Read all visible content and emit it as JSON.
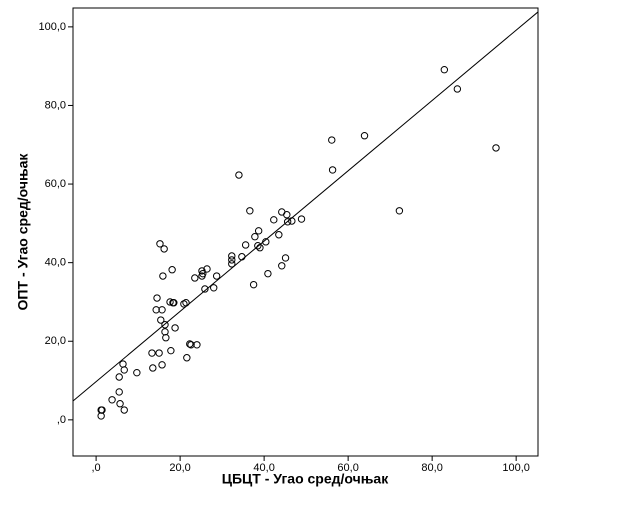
{
  "chart_data": {
    "type": "scatter",
    "x_label": "ЦБЦТ - Угао сред/очњак",
    "y_label": "ОПТ - Угао сред/очњак",
    "xlim": [
      -5.5,
      105.2
    ],
    "ylim": [
      -9.2,
      104.8
    ],
    "xticks": [
      {
        "value": 0,
        "label": ",0"
      },
      {
        "value": 20,
        "label": "20,0"
      },
      {
        "value": 40,
        "label": "40,0"
      },
      {
        "value": 60,
        "label": "60,0"
      },
      {
        "value": 80,
        "label": "80,0"
      },
      {
        "value": 100,
        "label": "100,0"
      }
    ],
    "yticks": [
      {
        "value": 0,
        "label": ",0"
      },
      {
        "value": 20,
        "label": "20,0"
      },
      {
        "value": 40,
        "label": "40,0"
      },
      {
        "value": 60,
        "label": "60,0"
      },
      {
        "value": 80,
        "label": "80,0"
      },
      {
        "value": 100,
        "label": "100,0"
      }
    ],
    "color": "#000000",
    "x": [
      1.2,
      1.4,
      1.2,
      3.8,
      5.5,
      5.7,
      5.5,
      6.7,
      6.4,
      6.7,
      9.7,
      13.3,
      13.5,
      14.5,
      14.3,
      15.0,
      15.4,
      15.7,
      15.2,
      16.2,
      15.9,
      15.7,
      16.4,
      16.4,
      16.6,
      17.6,
      18.1,
      18.3,
      18.5,
      17.8,
      18.8,
      20.9,
      21.4,
      21.6,
      22.3,
      22.6,
      24.0,
      23.5,
      25.2,
      25.4,
      25.2,
      26.4,
      25.9,
      28.0,
      28.7,
      32.3,
      32.3,
      32.3,
      34.7,
      35.6,
      34.0,
      36.6,
      37.8,
      37.5,
      38.7,
      38.5,
      39.0,
      40.4,
      40.9,
      42.3,
      43.5,
      44.2,
      44.2,
      45.1,
      45.4,
      45.6,
      46.6,
      48.9,
      56.1,
      56.3,
      63.9,
      72.2,
      82.9,
      86.0,
      95.2
    ],
    "y": [
      2.5,
      2.5,
      1.0,
      5.1,
      7.1,
      4.1,
      10.9,
      2.5,
      14.2,
      12.7,
      12.0,
      17.0,
      13.2,
      31.0,
      28.0,
      17.0,
      25.4,
      28.0,
      44.8,
      43.5,
      36.6,
      14.0,
      24.2,
      22.4,
      20.9,
      30.0,
      38.2,
      29.8,
      29.8,
      17.6,
      23.4,
      29.5,
      29.8,
      15.8,
      19.3,
      19.1,
      19.1,
      36.1,
      37.9,
      37.2,
      36.6,
      38.4,
      33.3,
      33.6,
      36.6,
      41.7,
      40.7,
      39.7,
      41.5,
      44.5,
      62.3,
      53.2,
      46.6,
      34.4,
      48.1,
      44.3,
      43.8,
      45.3,
      37.2,
      50.9,
      47.1,
      52.9,
      39.2,
      41.2,
      52.2,
      50.4,
      50.6,
      51.1,
      71.2,
      63.6,
      72.3,
      53.2,
      89.1,
      84.2,
      69.2
    ],
    "fit_line": {
      "x": [
        -5.5,
        105.2
      ],
      "y": [
        4.8,
        103.8
      ]
    }
  }
}
